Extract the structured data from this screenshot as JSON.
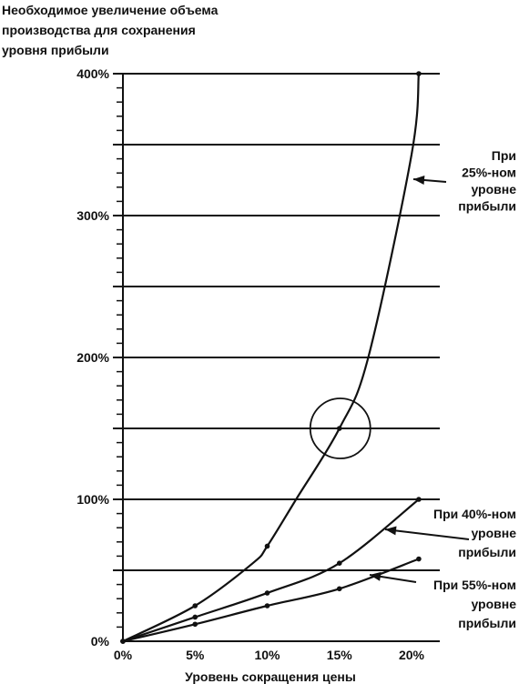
{
  "chart_data": {
    "type": "line",
    "title_lines": [
      "Необходимое увеличение объема",
      "производства для сохранения",
      "уровня прибыли"
    ],
    "xlabel": "Уровень сокращения цены",
    "ylabel": "",
    "x_ticks": [
      "0%",
      "5%",
      "10%",
      "15%",
      "20%"
    ],
    "y_ticks": [
      "0%",
      "100%",
      "200%",
      "300%",
      "400%"
    ],
    "xlim": [
      0,
      22
    ],
    "ylim": [
      0,
      400
    ],
    "gridlines_y": [
      50,
      100,
      150,
      200,
      250,
      300,
      350,
      400
    ],
    "grid": true,
    "series": [
      {
        "name_lines": [
          "При",
          "25%-ном",
          "уровне",
          "прибыли"
        ],
        "x": [
          0,
          5,
          9,
          10,
          12,
          15,
          17,
          20,
          20.5
        ],
        "y": [
          0,
          25,
          55,
          67,
          100,
          150,
          200,
          343,
          400
        ],
        "markers_x": [
          0,
          5,
          10,
          15,
          20.5
        ],
        "markers_y": [
          0,
          25,
          67,
          150,
          400
        ]
      },
      {
        "name_lines": [
          "При 40%-ном",
          "уровне",
          "прибыли"
        ],
        "x": [
          0,
          5,
          10,
          15,
          20.5
        ],
        "y": [
          0,
          17,
          34,
          55,
          100
        ],
        "markers_x": [
          0,
          5,
          10,
          15,
          20.5
        ],
        "markers_y": [
          0,
          17,
          34,
          55,
          100
        ]
      },
      {
        "name_lines": [
          "При 55%-ном",
          "уровне",
          "прибыли"
        ],
        "x": [
          0,
          5,
          10,
          15,
          20.5
        ],
        "y": [
          0,
          12,
          25,
          37,
          58
        ],
        "markers_x": [
          0,
          5,
          10,
          15,
          20.5
        ],
        "markers_y": [
          0,
          12,
          25,
          37,
          58
        ]
      }
    ],
    "highlight": {
      "shape": "circle",
      "x": 15,
      "y": 150
    }
  }
}
